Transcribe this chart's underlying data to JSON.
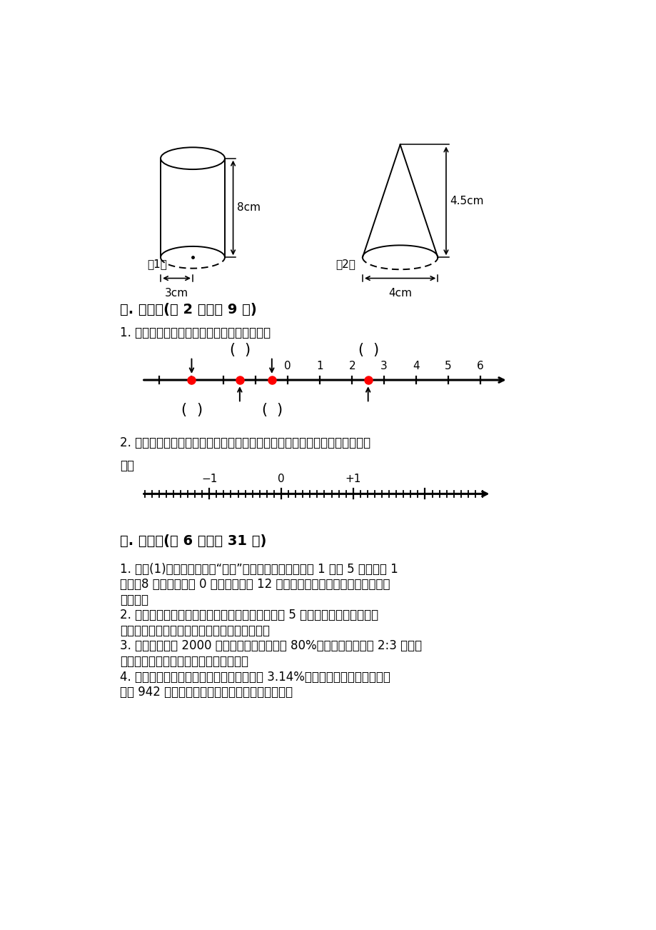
{
  "bg_color": "#ffffff",
  "section5_title": "五. 作图题(公 2 题，公 9 分)",
  "q1_text": "1. 从左到右在括号里填数。（填整数或小数）",
  "q2_text": "2. 下面的数轴，我们认识的数能用数轴上的点表示，在相应的点上写出相应的",
  "q2_text2": "数。",
  "section6_title": "六. 解答题(公 6 题，公 31 分)",
  "q_a1_lines": [
    "1. 在六(1)班新年联欢会的“猜谜”抚答比赛中，规定答对 1 题得 5 分，答错 1",
    "题得－8 分，不答者得 0 分，淘淘共得 12 分，他抚答几次？答对几道题？答错",
    "几道题？"
  ],
  "q_a2_lines": [
    "2. 一个无盖的圆柱形铁皮水桶，底面直径和高都是 5 分米，做这样一个水桶至",
    "少需用多少平方分米的铁皮？（得数保留整数）"
  ],
  "q_a3_lines": [
    "3. 学校购进图书 2000 本，其中文学类图书占 80%，将这些文学书按 2:3 全部分",
    "给中、高年级，高年级可以分得多少本？"
  ],
  "q_a4_lines": [
    "4. 张叔叔购买了三年期国傘，当时年利率为 3.14%。到期时张叔叔除本金外，",
    "拿到 942 元利息款。张叔叔购买了多少元的国傘？"
  ]
}
